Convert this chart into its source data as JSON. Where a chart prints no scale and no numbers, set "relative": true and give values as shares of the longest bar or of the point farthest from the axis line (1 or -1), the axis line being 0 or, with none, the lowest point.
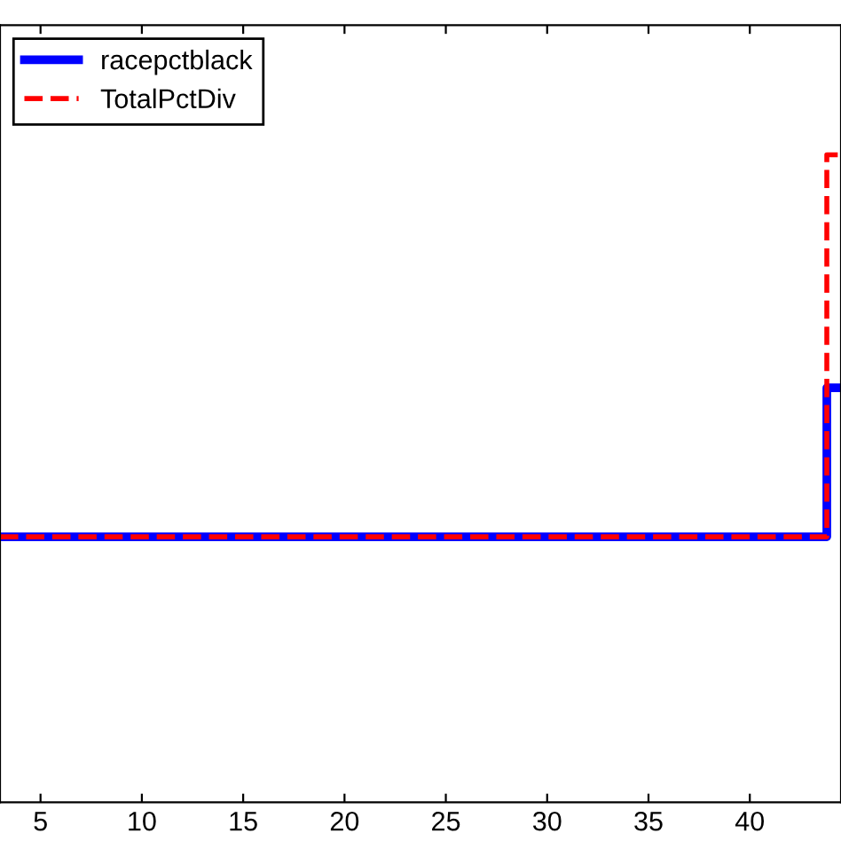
{
  "chart_data": {
    "type": "step",
    "relative": true,
    "x": [
      3,
      43.8,
      44.5
    ],
    "xlim": [
      3,
      44.5
    ],
    "xticks": [
      5,
      10,
      15,
      20,
      25,
      30,
      35,
      40
    ],
    "series": [
      {
        "name": "racepctblack",
        "color": "#0000ff",
        "line_style": "solid",
        "values": [
          0.41,
          0.64,
          0.64
        ]
      },
      {
        "name": "TotalPctDiv",
        "color": "#ff0000",
        "line_style": "dashed",
        "values": [
          0.41,
          1,
          1
        ]
      }
    ],
    "legend": "top left",
    "grid": false
  }
}
